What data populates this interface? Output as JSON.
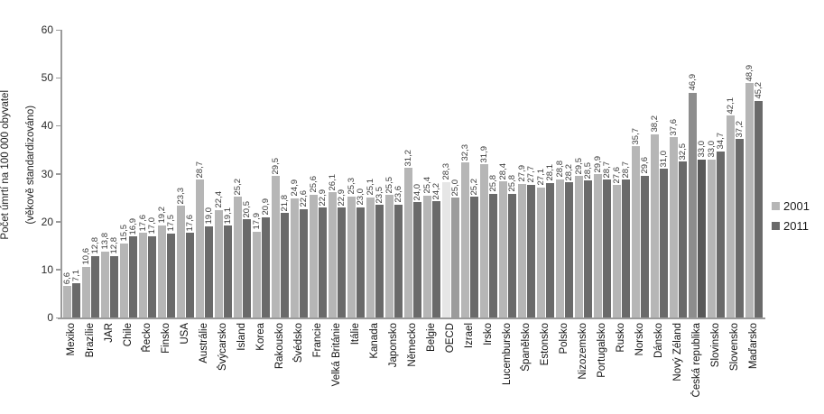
{
  "chart_data": {
    "type": "bar",
    "title": "",
    "ylabel_line1": "Počet úmrtí na 100 000 obyvatel",
    "ylabel_line2": "(věkově standardizováno)",
    "ylim": [
      0,
      60
    ],
    "yticks": [
      "0",
      "10",
      "20",
      "30",
      "40",
      "50",
      "60"
    ],
    "grid": "off",
    "legend_position": "right",
    "decimal_separator": ",",
    "categories": [
      "Mexiko",
      "Brazílie",
      "JAR",
      "Chile",
      "Řecko",
      "Finsko",
      "USA",
      "Austrálie",
      "Švýcarsko",
      "Island",
      "Korea",
      "Rakousko",
      "Švédsko",
      "Francie",
      "Velká Británie",
      "Itálie",
      "Kanada",
      "Japonsko",
      "Německo",
      "Belgie",
      "OECD",
      "Izrael",
      "Irsko",
      "Lucembursko",
      "Španělsko",
      "Estonsko",
      "Polsko",
      "Nizozemsko",
      "Portugalsko",
      "Rusko",
      "Norsko",
      "Dánsko",
      "Nový Zéland",
      "Česká republika",
      "Slovinsko",
      "Slovensko",
      "Maďarsko"
    ],
    "series": [
      {
        "name": "2001",
        "values": [
          6.6,
          10.6,
          13.8,
          15.5,
          17.6,
          19.2,
          23.3,
          28.7,
          22.4,
          25.2,
          17.9,
          29.5,
          24.9,
          25.6,
          26.1,
          25.3,
          25.1,
          25.5,
          31.2,
          25.4,
          28.3,
          32.3,
          31.9,
          28.4,
          27.9,
          27.1,
          28.8,
          29.5,
          29.9,
          27.6,
          35.7,
          38.2,
          37.6,
          46.9,
          33.0,
          42.1,
          48.9
        ]
      },
      {
        "name": "2011",
        "values": [
          7.1,
          12.8,
          12.8,
          16.9,
          17.0,
          17.5,
          17.6,
          19.0,
          19.1,
          20.5,
          20.9,
          21.8,
          22.6,
          22.9,
          22.9,
          23.0,
          23.5,
          23.6,
          24.0,
          24.2,
          25.0,
          25.2,
          25.8,
          25.8,
          27.7,
          28.1,
          28.2,
          28.5,
          28.7,
          28.7,
          29.6,
          31.0,
          32.5,
          33.0,
          34.7,
          37.2,
          45.2
        ]
      }
    ],
    "legend": [
      {
        "label": "2001"
      },
      {
        "label": "2011"
      }
    ],
    "highlights": {
      "OECD": {
        "c2001": "#e6e6e6",
        "c2011": "#9c9c9c"
      },
      "Česká republika": {
        "c2001": "#8d8d8d",
        "c2011": "#585858"
      }
    }
  },
  "colors": {
    "series_2001": "#b6b6b6",
    "series_2011": "#6a6a6a",
    "axis": "#9b9b9b",
    "value_label": "#3a3a3a",
    "category_label": "#111111"
  }
}
